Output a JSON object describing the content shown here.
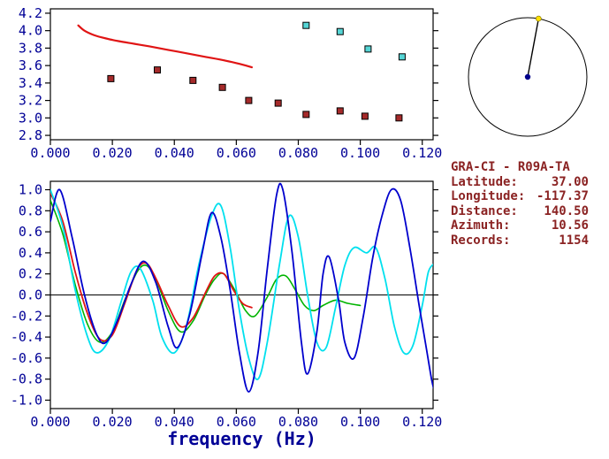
{
  "colors": {
    "axis_text": "#000096",
    "frame": "#000000",
    "info_text": "#8B2323",
    "ref_curve": "#E01414",
    "pick_marker": "#A52A2A",
    "alt_marker": "#55D5D5",
    "wave_blue": "#0000CD",
    "wave_cyan": "#00E0EE",
    "wave_green": "#00B400",
    "wave_red": "#E01414",
    "globe_center_dot": "#00008B",
    "globe_end_dot": "#FFE100",
    "globe_line": "#000000"
  },
  "info_panel": {
    "title": "GRA-CI - R09A-TA",
    "rows": [
      {
        "label": "Latitude:",
        "value": "37.00"
      },
      {
        "label": "Longitude:",
        "value": "-117.37"
      },
      {
        "label": "Distance:",
        "value": "140.50"
      },
      {
        "label": "Azimuth:",
        "value": "10.56"
      },
      {
        "label": "Records:",
        "value": "1154"
      }
    ]
  },
  "globe": {
    "azimuth_deg": 10.56
  },
  "chart_data": [
    {
      "type": "scatter",
      "title": "",
      "xlabel": "",
      "ylabel": "",
      "xlim": [
        0,
        0.1235
      ],
      "ylim": [
        2.75,
        4.25
      ],
      "grid": false,
      "legend": "none",
      "xticks": [
        0.0,
        0.02,
        0.04,
        0.06,
        0.08,
        0.1,
        0.12
      ],
      "xtick_labels": [
        "0.000",
        "0.020",
        "0.040",
        "0.060",
        "0.080",
        "0.100",
        "0.120"
      ],
      "yticks": [
        2.8,
        3.0,
        3.2,
        3.4,
        3.6,
        3.8,
        4.0,
        4.2
      ],
      "ytick_labels": [
        "2.8",
        "3.0",
        "3.2",
        "3.4",
        "3.6",
        "3.8",
        "4.0",
        "4.2"
      ],
      "series": [
        {
          "name": "reference-dispersion-curve",
          "kind": "line",
          "color_key": "ref_curve",
          "width": 2.2,
          "x": [
            0.009,
            0.011,
            0.014,
            0.018,
            0.022,
            0.027,
            0.032,
            0.038,
            0.044,
            0.05,
            0.056,
            0.061,
            0.065
          ],
          "y": [
            4.06,
            4.0,
            3.95,
            3.91,
            3.88,
            3.85,
            3.82,
            3.78,
            3.74,
            3.7,
            3.66,
            3.62,
            3.58
          ]
        },
        {
          "name": "group-velocity-picks",
          "kind": "square",
          "color_key": "pick_marker",
          "x": [
            0.0195,
            0.0345,
            0.046,
            0.0555,
            0.064,
            0.0735,
            0.0825,
            0.0935,
            0.1015,
            0.1125
          ],
          "y": [
            3.45,
            3.55,
            3.43,
            3.35,
            3.2,
            3.17,
            3.04,
            3.08,
            3.02,
            3.0
          ]
        },
        {
          "name": "secondary-picks",
          "kind": "square",
          "color_key": "alt_marker",
          "x": [
            0.0825,
            0.0935,
            0.1025,
            0.1135
          ],
          "y": [
            4.06,
            3.99,
            3.79,
            3.7
          ]
        }
      ]
    },
    {
      "type": "line",
      "title": "",
      "xlabel": "frequency (Hz)",
      "ylabel": "",
      "xlim": [
        0,
        0.1235
      ],
      "ylim": [
        -1.08,
        1.08
      ],
      "grid": false,
      "legend": "none",
      "zero_line": true,
      "xticks": [
        0.0,
        0.02,
        0.04,
        0.06,
        0.08,
        0.1,
        0.12
      ],
      "xtick_labels": [
        "0.000",
        "0.020",
        "0.040",
        "0.060",
        "0.080",
        "0.100",
        "0.120"
      ],
      "yticks": [
        1.0,
        0.8,
        0.6,
        0.4,
        0.2,
        0.0,
        -0.2,
        -0.4,
        -0.6,
        -0.8,
        -1.0
      ],
      "ytick_labels": [
        "1.0",
        "0.8",
        "0.6",
        "0.4",
        "0.2",
        "0.0",
        "-0.2",
        "-0.4",
        "-0.6",
        "-0.8",
        "-1.0"
      ],
      "series": [
        {
          "name": "trace-green",
          "kind": "line",
          "color_key": "wave_green",
          "width": 1.6,
          "x": [
            0.0,
            0.004,
            0.008,
            0.012,
            0.016,
            0.02,
            0.024,
            0.028,
            0.031,
            0.034,
            0.038,
            0.042,
            0.046,
            0.05,
            0.053,
            0.056,
            0.06,
            0.063,
            0.066,
            0.07,
            0.073,
            0.076,
            0.079,
            0.082,
            0.085,
            0.088,
            0.092,
            0.096,
            0.1
          ],
          "y": [
            0.9,
            0.58,
            0.1,
            -0.28,
            -0.45,
            -0.35,
            -0.05,
            0.22,
            0.28,
            0.15,
            -0.15,
            -0.35,
            -0.25,
            0.0,
            0.15,
            0.2,
            0.02,
            -0.15,
            -0.2,
            -0.02,
            0.15,
            0.18,
            0.05,
            -0.1,
            -0.15,
            -0.1,
            -0.05,
            -0.08,
            -0.1
          ]
        },
        {
          "name": "trace-red",
          "kind": "line",
          "color_key": "wave_red",
          "width": 1.8,
          "x": [
            0.0,
            0.004,
            0.008,
            0.012,
            0.016,
            0.02,
            0.024,
            0.028,
            0.031,
            0.034,
            0.038,
            0.042,
            0.046,
            0.05,
            0.053,
            0.056,
            0.059,
            0.062,
            0.065
          ],
          "y": [
            0.97,
            0.7,
            0.22,
            -0.18,
            -0.42,
            -0.38,
            -0.08,
            0.24,
            0.3,
            0.16,
            -0.1,
            -0.3,
            -0.22,
            0.02,
            0.18,
            0.2,
            0.05,
            -0.08,
            -0.12
          ]
        },
        {
          "name": "trace-cyan",
          "kind": "line",
          "color_key": "wave_cyan",
          "width": 1.8,
          "x": [
            0.0,
            0.004,
            0.008,
            0.012,
            0.015,
            0.019,
            0.023,
            0.026,
            0.029,
            0.033,
            0.036,
            0.04,
            0.044,
            0.048,
            0.052,
            0.055,
            0.058,
            0.061,
            0.064,
            0.067,
            0.07,
            0.074,
            0.077,
            0.08,
            0.083,
            0.086,
            0.089,
            0.092,
            0.095,
            0.098,
            0.102,
            0.105,
            0.108,
            0.111,
            0.114,
            0.117,
            0.12,
            0.122,
            0.124
          ],
          "y": [
            1.0,
            0.65,
            0.05,
            -0.4,
            -0.55,
            -0.42,
            -0.05,
            0.22,
            0.25,
            -0.05,
            -0.4,
            -0.55,
            -0.28,
            0.3,
            0.75,
            0.85,
            0.45,
            -0.15,
            -0.6,
            -0.8,
            -0.45,
            0.3,
            0.75,
            0.55,
            0.0,
            -0.45,
            -0.5,
            -0.12,
            0.28,
            0.45,
            0.4,
            0.45,
            0.15,
            -0.3,
            -0.55,
            -0.48,
            -0.1,
            0.22,
            0.3
          ]
        },
        {
          "name": "trace-blue",
          "kind": "line",
          "color_key": "wave_blue",
          "width": 1.8,
          "x": [
            0.0,
            0.003,
            0.007,
            0.011,
            0.015,
            0.018,
            0.022,
            0.026,
            0.03,
            0.034,
            0.038,
            0.041,
            0.045,
            0.049,
            0.052,
            0.055,
            0.058,
            0.061,
            0.064,
            0.067,
            0.07,
            0.073,
            0.075,
            0.078,
            0.081,
            0.083,
            0.086,
            0.088,
            0.09,
            0.093,
            0.095,
            0.098,
            0.101,
            0.104,
            0.107,
            0.11,
            0.113,
            0.116,
            0.119,
            0.121,
            0.123,
            0.124
          ],
          "y": [
            0.7,
            1.0,
            0.55,
            0.0,
            -0.38,
            -0.45,
            -0.22,
            0.1,
            0.32,
            0.12,
            -0.3,
            -0.5,
            -0.18,
            0.4,
            0.78,
            0.55,
            0.05,
            -0.55,
            -0.92,
            -0.55,
            0.25,
            0.95,
            1.0,
            0.4,
            -0.45,
            -0.75,
            -0.35,
            0.2,
            0.36,
            -0.05,
            -0.45,
            -0.6,
            -0.2,
            0.35,
            0.75,
            1.0,
            0.9,
            0.45,
            -0.1,
            -0.45,
            -0.8,
            -0.92
          ]
        }
      ]
    }
  ]
}
